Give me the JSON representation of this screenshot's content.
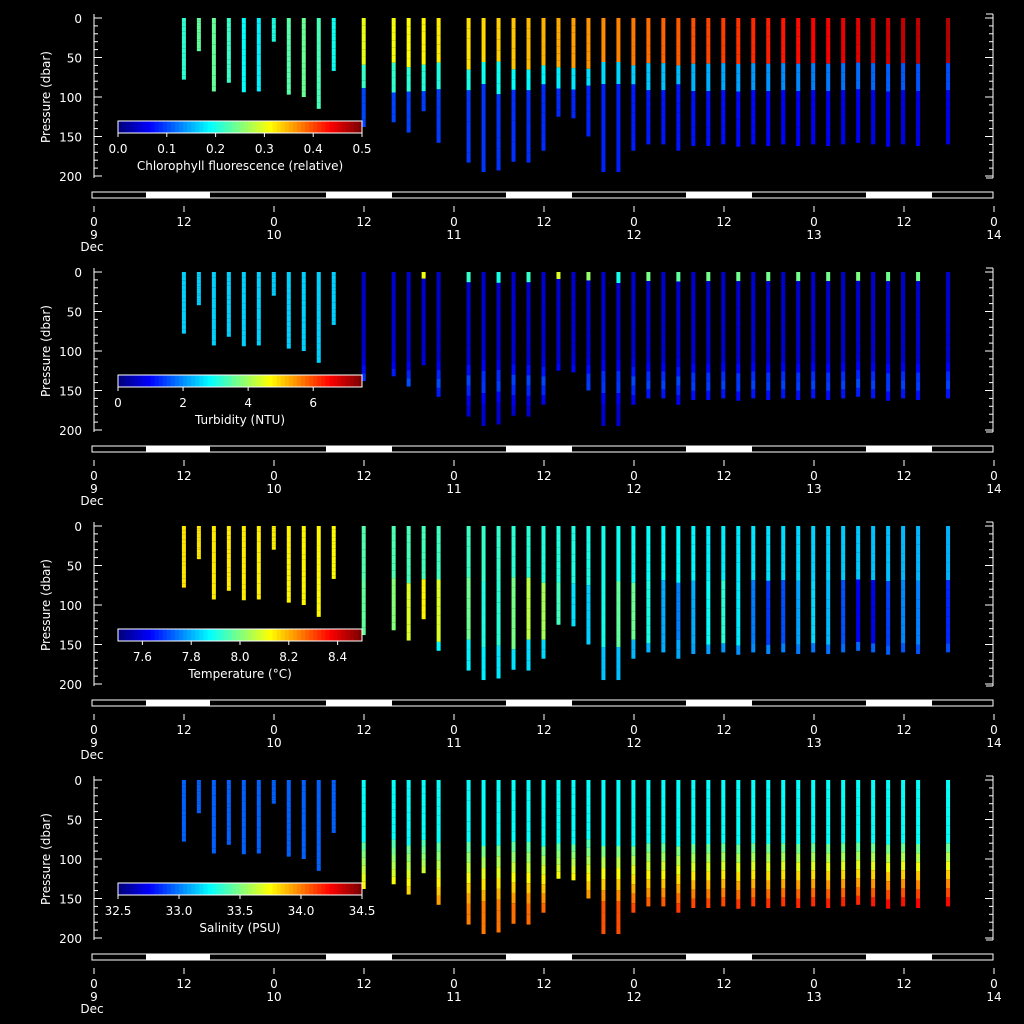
{
  "chart_data": [
    {
      "type": "scatter",
      "variable": "chlorophyll",
      "colorbar_label": "Chlorophyll fluorescence (relative)",
      "colorbar_ticks": [
        "0.0",
        "0.1",
        "0.2",
        "0.3",
        "0.4",
        "0.5"
      ],
      "crange": [
        0.0,
        0.5
      ],
      "ylabel": "Pressure (dbar)",
      "yticks": [
        "0",
        "50",
        "100",
        "150",
        "200"
      ],
      "ylim": [
        0,
        200
      ],
      "xticks": [
        "0",
        "12",
        "0",
        "12",
        "0",
        "12",
        "0",
        "12",
        "0",
        "12",
        "0"
      ],
      "xday_labels": [
        "9",
        "10",
        "11",
        "12",
        "13",
        "14"
      ],
      "xmonth_label": "Dec"
    },
    {
      "type": "scatter",
      "variable": "turbidity",
      "colorbar_label": "Turbidity (NTU)",
      "colorbar_ticks": [
        "0",
        "2",
        "4",
        "6"
      ],
      "crange": [
        0,
        7.5
      ],
      "ylabel": "Pressure (dbar)",
      "yticks": [
        "0",
        "50",
        "100",
        "150",
        "200"
      ],
      "ylim": [
        0,
        200
      ],
      "xticks": [
        "0",
        "12",
        "0",
        "12",
        "0",
        "12",
        "0",
        "12",
        "0",
        "12",
        "0"
      ],
      "xday_labels": [
        "9",
        "10",
        "11",
        "12",
        "13",
        "14"
      ],
      "xmonth_label": "Dec"
    },
    {
      "type": "scatter",
      "variable": "temperature",
      "colorbar_label": "Temperature (°C)",
      "colorbar_ticks": [
        "7.6",
        "7.8",
        "8.0",
        "8.2",
        "8.4"
      ],
      "crange": [
        7.5,
        8.5
      ],
      "ylabel": "Pressure (dbar)",
      "yticks": [
        "0",
        "50",
        "100",
        "150",
        "200"
      ],
      "ylim": [
        0,
        200
      ],
      "xticks": [
        "0",
        "12",
        "0",
        "12",
        "0",
        "12",
        "0",
        "12",
        "0",
        "12",
        "0"
      ],
      "xday_labels": [
        "9",
        "10",
        "11",
        "12",
        "13",
        "14"
      ],
      "xmonth_label": "Dec"
    },
    {
      "type": "scatter",
      "variable": "salinity",
      "colorbar_label": "Salinity (PSU)",
      "colorbar_ticks": [
        "32.5",
        "33.0",
        "33.5",
        "34.0",
        "34.5"
      ],
      "crange": [
        32.5,
        34.5
      ],
      "ylabel": "Pressure (dbar)",
      "yticks": [
        "0",
        "50",
        "100",
        "150",
        "200"
      ],
      "ylim": [
        0,
        200
      ],
      "xticks": [
        "0",
        "12",
        "0",
        "12",
        "0",
        "12",
        "0",
        "12",
        "0",
        "12",
        "0"
      ],
      "xday_labels": [
        "9",
        "10",
        "11",
        "12",
        "13",
        "14"
      ],
      "xmonth_label": "Dec"
    }
  ],
  "profiles": {
    "time_hours_since_dec9": [
      12,
      14,
      16,
      18,
      20,
      22,
      24,
      26,
      28,
      30,
      32,
      36,
      40,
      42,
      44,
      46,
      50,
      52,
      54,
      56,
      58,
      60,
      62,
      64,
      66,
      68,
      70,
      72,
      74,
      76,
      78,
      80,
      82,
      84,
      86,
      88,
      90,
      92,
      94,
      96,
      98,
      100,
      102,
      104,
      106,
      108,
      110,
      114
    ],
    "max_depth_dbar": [
      78,
      42,
      93,
      82,
      94,
      93,
      30,
      97,
      100,
      115,
      67,
      138,
      132,
      145,
      118,
      158,
      183,
      195,
      193,
      182,
      183,
      168,
      125,
      127,
      150,
      195,
      195,
      168,
      160,
      160,
      168,
      162,
      162,
      160,
      163,
      160,
      162,
      160,
      162,
      160,
      162,
      160,
      158,
      160,
      163,
      160,
      162,
      160
    ]
  }
}
